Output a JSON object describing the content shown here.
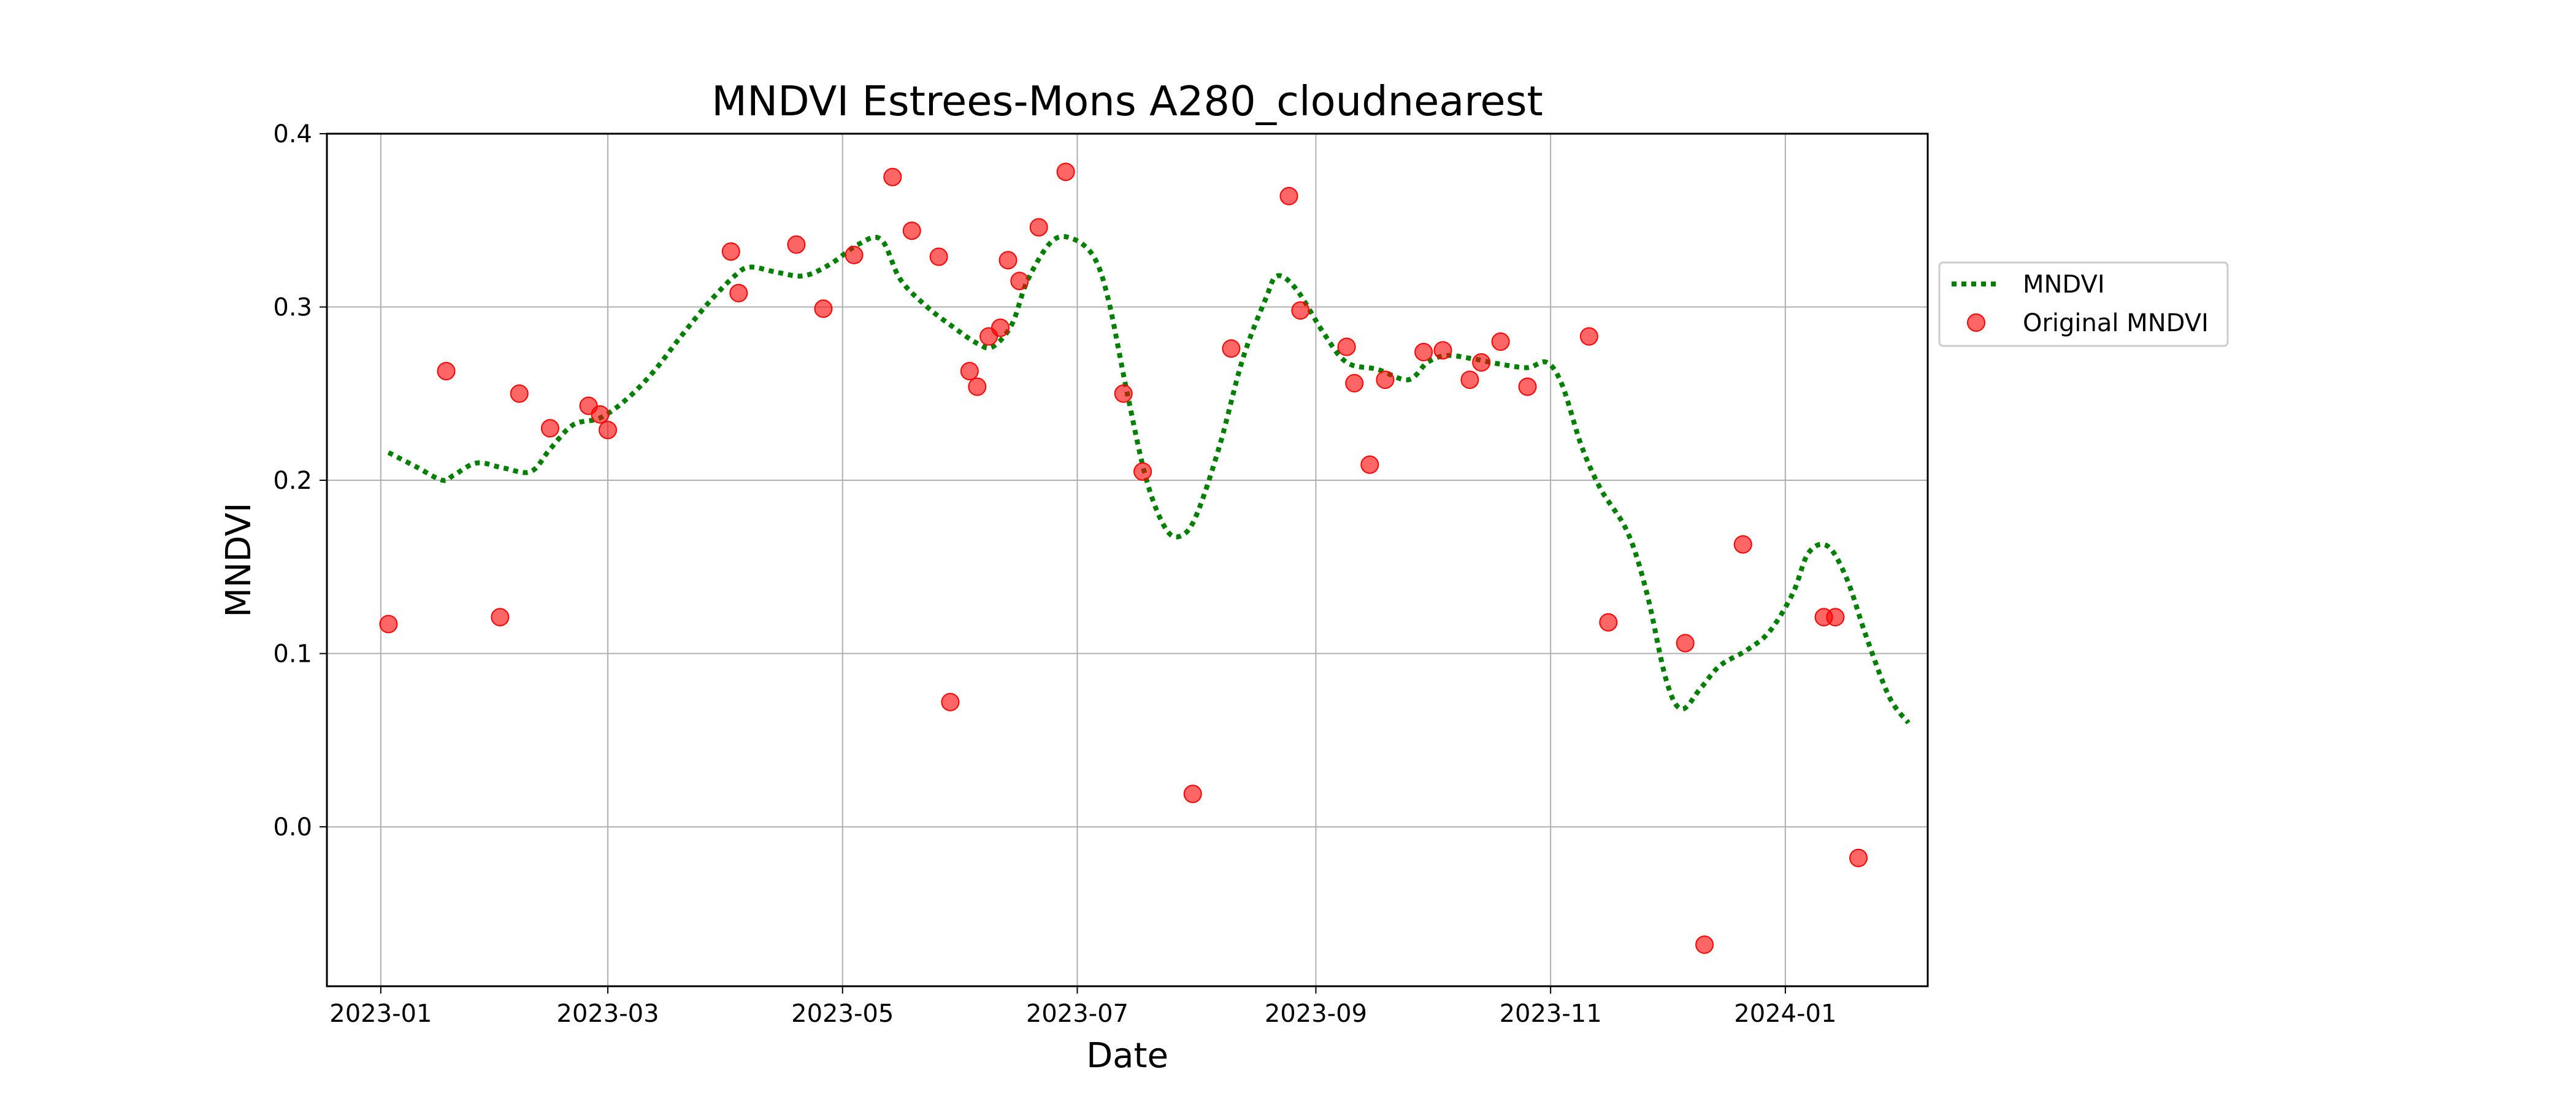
{
  "chart_data": {
    "type": "line",
    "title": "MNDVI Estrees-Mons A280_cloudnearest",
    "xlabel": "Date",
    "ylabel": "MNDVI",
    "xlim": [
      "2022-12-18",
      "2024-02-07"
    ],
    "ylim": [
      -0.092,
      0.4
    ],
    "x_ticks": [
      "2023-01",
      "2023-03",
      "2023-05",
      "2023-07",
      "2023-09",
      "2023-11",
      "2024-01"
    ],
    "y_ticks": [
      0.0,
      0.1,
      0.2,
      0.3,
      0.4
    ],
    "y_tick_labels": [
      "0.0",
      "0.1",
      "0.2",
      "0.3",
      "0.4"
    ],
    "grid": true,
    "legend_position": "outside-right",
    "series": [
      {
        "name": "MNDVI",
        "style": "dotted-line",
        "color": "#008000",
        "points": [
          [
            "2023-01-03",
            0.216
          ],
          [
            "2023-01-10",
            0.208
          ],
          [
            "2023-01-17",
            0.2
          ],
          [
            "2023-01-20",
            0.203
          ],
          [
            "2023-01-26",
            0.21
          ],
          [
            "2023-02-02",
            0.207
          ],
          [
            "2023-02-09",
            0.205
          ],
          [
            "2023-02-14",
            0.218
          ],
          [
            "2023-02-20",
            0.232
          ],
          [
            "2023-02-27",
            0.236
          ],
          [
            "2023-03-06",
            0.247
          ],
          [
            "2023-03-13",
            0.263
          ],
          [
            "2023-03-20",
            0.283
          ],
          [
            "2023-03-27",
            0.302
          ],
          [
            "2023-04-03",
            0.318
          ],
          [
            "2023-04-07",
            0.323
          ],
          [
            "2023-04-14",
            0.32
          ],
          [
            "2023-04-21",
            0.318
          ],
          [
            "2023-04-28",
            0.325
          ],
          [
            "2023-05-05",
            0.336
          ],
          [
            "2023-05-11",
            0.339
          ],
          [
            "2023-05-16",
            0.316
          ],
          [
            "2023-05-23",
            0.3
          ],
          [
            "2023-05-30",
            0.288
          ],
          [
            "2023-06-05",
            0.279
          ],
          [
            "2023-06-09",
            0.277
          ],
          [
            "2023-06-14",
            0.29
          ],
          [
            "2023-06-18",
            0.315
          ],
          [
            "2023-06-24",
            0.337
          ],
          [
            "2023-06-29",
            0.34
          ],
          [
            "2023-07-05",
            0.33
          ],
          [
            "2023-07-09",
            0.305
          ],
          [
            "2023-07-14",
            0.25
          ],
          [
            "2023-07-19",
            0.2
          ],
          [
            "2023-07-24",
            0.172
          ],
          [
            "2023-07-28",
            0.168
          ],
          [
            "2023-08-01",
            0.18
          ],
          [
            "2023-08-07",
            0.22
          ],
          [
            "2023-08-13",
            0.27
          ],
          [
            "2023-08-19",
            0.305
          ],
          [
            "2023-08-22",
            0.318
          ],
          [
            "2023-08-27",
            0.31
          ],
          [
            "2023-09-03",
            0.285
          ],
          [
            "2023-09-09",
            0.268
          ],
          [
            "2023-09-17",
            0.264
          ],
          [
            "2023-09-25",
            0.258
          ],
          [
            "2023-09-30",
            0.268
          ],
          [
            "2023-10-05",
            0.272
          ],
          [
            "2023-10-12",
            0.27
          ],
          [
            "2023-10-19",
            0.267
          ],
          [
            "2023-10-26",
            0.265
          ],
          [
            "2023-10-31",
            0.268
          ],
          [
            "2023-11-04",
            0.255
          ],
          [
            "2023-11-09",
            0.22
          ],
          [
            "2023-11-14",
            0.195
          ],
          [
            "2023-11-21",
            0.17
          ],
          [
            "2023-11-26",
            0.135
          ],
          [
            "2023-12-01",
            0.085
          ],
          [
            "2023-12-05",
            0.068
          ],
          [
            "2023-12-10",
            0.08
          ],
          [
            "2023-12-15",
            0.093
          ],
          [
            "2023-12-22",
            0.102
          ],
          [
            "2023-12-28",
            0.113
          ],
          [
            "2024-01-03",
            0.135
          ],
          [
            "2024-01-07",
            0.158
          ],
          [
            "2024-01-12",
            0.162
          ],
          [
            "2024-01-17",
            0.143
          ],
          [
            "2024-01-22",
            0.11
          ],
          [
            "2024-01-28",
            0.075
          ],
          [
            "2024-02-02",
            0.06
          ]
        ]
      },
      {
        "name": "Original MNDVI",
        "style": "scatter",
        "color": "#ff0000",
        "points": [
          [
            "2023-01-03",
            0.117
          ],
          [
            "2023-01-18",
            0.263
          ],
          [
            "2023-02-01",
            0.121
          ],
          [
            "2023-02-06",
            0.25
          ],
          [
            "2023-02-14",
            0.23
          ],
          [
            "2023-02-24",
            0.243
          ],
          [
            "2023-02-27",
            0.238
          ],
          [
            "2023-03-01",
            0.229
          ],
          [
            "2023-04-02",
            0.332
          ],
          [
            "2023-04-04",
            0.308
          ],
          [
            "2023-04-19",
            0.336
          ],
          [
            "2023-04-26",
            0.299
          ],
          [
            "2023-05-04",
            0.33
          ],
          [
            "2023-05-14",
            0.375
          ],
          [
            "2023-05-19",
            0.344
          ],
          [
            "2023-05-26",
            0.329
          ],
          [
            "2023-05-29",
            0.072
          ],
          [
            "2023-06-03",
            0.263
          ],
          [
            "2023-06-05",
            0.254
          ],
          [
            "2023-06-08",
            0.283
          ],
          [
            "2023-06-11",
            0.288
          ],
          [
            "2023-06-13",
            0.327
          ],
          [
            "2023-06-16",
            0.315
          ],
          [
            "2023-06-21",
            0.346
          ],
          [
            "2023-06-28",
            0.378
          ],
          [
            "2023-07-13",
            0.25
          ],
          [
            "2023-07-18",
            0.205
          ],
          [
            "2023-07-31",
            0.019
          ],
          [
            "2023-08-10",
            0.276
          ],
          [
            "2023-08-25",
            0.364
          ],
          [
            "2023-08-28",
            0.298
          ],
          [
            "2023-09-09",
            0.277
          ],
          [
            "2023-09-11",
            0.256
          ],
          [
            "2023-09-15",
            0.209
          ],
          [
            "2023-09-19",
            0.258
          ],
          [
            "2023-09-29",
            0.274
          ],
          [
            "2023-10-04",
            0.275
          ],
          [
            "2023-10-11",
            0.258
          ],
          [
            "2023-10-14",
            0.268
          ],
          [
            "2023-10-19",
            0.28
          ],
          [
            "2023-10-26",
            0.254
          ],
          [
            "2023-11-11",
            0.283
          ],
          [
            "2023-11-16",
            0.118
          ],
          [
            "2023-12-06",
            0.106
          ],
          [
            "2023-12-11",
            -0.068
          ],
          [
            "2023-12-21",
            0.163
          ],
          [
            "2024-01-11",
            0.121
          ],
          [
            "2024-01-14",
            0.121
          ],
          [
            "2024-01-20",
            -0.018
          ]
        ]
      }
    ]
  },
  "colors": {
    "line": "#008000",
    "marker": "#ff0000",
    "grid": "#b0b0b0",
    "axis": "#000000"
  }
}
